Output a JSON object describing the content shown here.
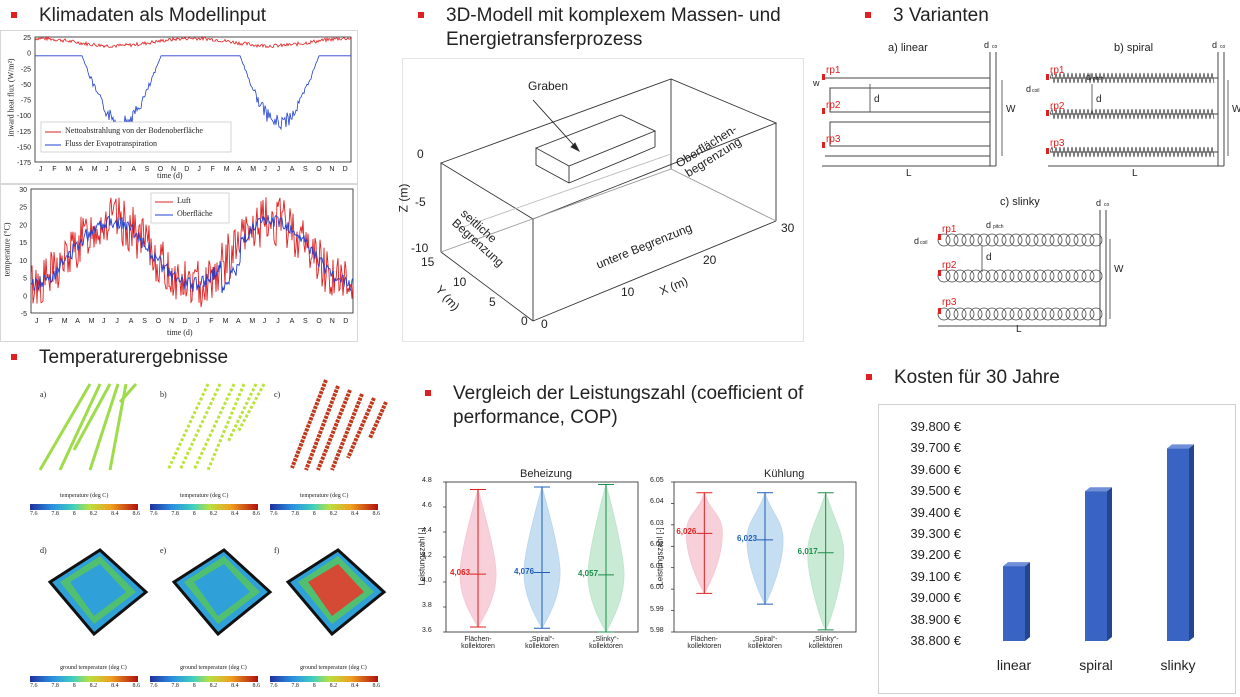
{
  "sections": {
    "klima": "Klimadaten als Modellinput",
    "model": "3D-Modell mit komplexem Massen- und Energietransferprozess",
    "variants": "3 Varianten",
    "temp": "Temperaturergebnisse",
    "cop": "Vergleich der Leistungszahl (coefficient of performance, COP)",
    "cost": "Kosten für 30 Jahre"
  },
  "colors": {
    "red": "#e02020",
    "blue": "#1f3fd0",
    "bar": "#3a64c4"
  },
  "climate_top": {
    "ylabel": "inward heat flux (W/m²)",
    "xlabel": "time (d)",
    "yticks": [
      "25",
      "0",
      "-25",
      "-50",
      "-75",
      "-100",
      "-125",
      "-150",
      "-175"
    ],
    "months": [
      "J",
      "F",
      "M",
      "A",
      "M",
      "J",
      "J",
      "A",
      "S",
      "O",
      "N",
      "D",
      "J",
      "F",
      "M",
      "A",
      "M",
      "J",
      "J",
      "A",
      "S",
      "O",
      "N",
      "D"
    ],
    "legend": [
      "Nettoabstrahlung von der Bodenoberfläche",
      "Fluss der Evapotranspiration"
    ]
  },
  "climate_bottom": {
    "ylabel": "temperature (°C)",
    "xlabel": "time (d)",
    "yticks": [
      "30",
      "25",
      "20",
      "15",
      "10",
      "5",
      "0",
      "-5"
    ],
    "legend": [
      "Luft",
      "Oberfläche"
    ]
  },
  "model3d": {
    "graben": "Graben",
    "top": "Oberflächen-begrenzung",
    "side": "seitliche Begrenzung",
    "bottom": "untere Begrenzung",
    "zlabel": "Z (m)",
    "ylabel": "Y (m)",
    "xlabel": "X (m)",
    "zticks": [
      "0",
      "-5",
      "-10"
    ],
    "yticks": [
      "15",
      "10",
      "5",
      "0"
    ],
    "xticks": [
      "0",
      "10",
      "20",
      "30"
    ]
  },
  "variants": {
    "a": "a) linear",
    "b": "b) spiral",
    "c": "c) slinky",
    "rp": [
      "rp1",
      "rp2",
      "rp3"
    ],
    "sym": {
      "W": "W",
      "d": "d",
      "L": "L",
      "dco": "d",
      "dpitch": "d",
      "dcoil": "d",
      "w": "w",
      "sub_co": "co",
      "sub_pitch": "pitch",
      "sub_coil": "coil"
    }
  },
  "temp_results": {
    "labels": [
      "a)",
      "b)",
      "c)",
      "d)",
      "e)",
      "f)"
    ],
    "cb_label": "temperature (deg C)",
    "cb_label2": "ground temperature (deg C)",
    "cb_ticks": [
      "7.6",
      "7.8",
      "8",
      "8.2",
      "8.4",
      "8.6"
    ]
  },
  "cop_heat": {
    "title": "Beheizung",
    "ylabel": "Leistungszahl [-]",
    "yticks": [
      "4.8",
      "4.6",
      "4.4",
      "4.2",
      "4.0",
      "3.8",
      "3.6"
    ],
    "cats": [
      "Flächen-\nkollektoren",
      "„Spiral“-\nkollektoren",
      "„Slinky“-\nkollektoren"
    ],
    "values": [
      "4,063",
      "4,076",
      "4,057"
    ]
  },
  "cop_cool": {
    "title": "Kühlung",
    "ylabel": "Leistungszahl [-]",
    "yticks": [
      "6.05",
      "6.04",
      "6.03",
      "6.02",
      "6.01",
      "6.00",
      "5.99",
      "5.98"
    ],
    "cats": [
      "Flächen-\nkollektoren",
      "„Spiral“-\nkollektoren",
      "„Slinky“-\nkollektoren"
    ],
    "values": [
      "6,026",
      "6,023",
      "6,017"
    ]
  },
  "chart_data": {
    "type": "bar",
    "title": "Kosten für 30 Jahre",
    "categories": [
      "linear",
      "spiral",
      "slinky"
    ],
    "values": [
      39150,
      39500,
      39700
    ],
    "ylim": [
      38800,
      39800
    ],
    "ytick_labels": [
      "39.800 €",
      "39.700 €",
      "39.600 €",
      "39.500 €",
      "39.400 €",
      "39.300 €",
      "39.200 €",
      "39.100 €",
      "39.000 €",
      "38.900 €",
      "38.800 €"
    ],
    "grid": false
  }
}
